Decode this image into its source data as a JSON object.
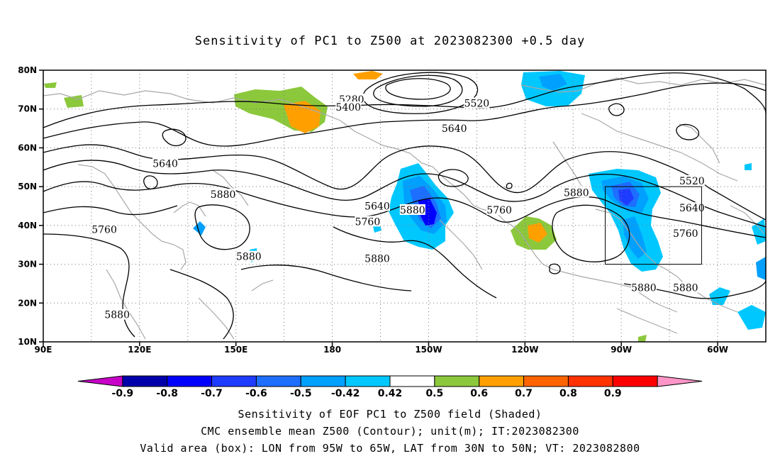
{
  "title": "Sensitivity of PC1 to Z500 at 2023082300 +0.5 day",
  "map": {
    "lat_labels": [
      {
        "text": "80N",
        "lat": 80
      },
      {
        "text": "70N",
        "lat": 70
      },
      {
        "text": "60N",
        "lat": 60
      },
      {
        "text": "50N",
        "lat": 50
      },
      {
        "text": "40N",
        "lat": 40
      },
      {
        "text": "30N",
        "lat": 30
      },
      {
        "text": "20N",
        "lat": 20
      },
      {
        "text": "10N",
        "lat": 10
      }
    ],
    "lon_labels": [
      {
        "text": "90E",
        "lon": 90
      },
      {
        "text": "120E",
        "lon": 120
      },
      {
        "text": "150E",
        "lon": 150
      },
      {
        "text": "180",
        "lon": 180
      },
      {
        "text": "150W",
        "lon": 210
      },
      {
        "text": "120W",
        "lon": 240
      },
      {
        "text": "90W",
        "lon": 270
      },
      {
        "text": "60W",
        "lon": 300
      }
    ],
    "lon_range": [
      90,
      315
    ],
    "lat_range": [
      10,
      80
    ],
    "grid": "dotted",
    "contour_labels": [
      {
        "text": "5280",
        "lon": 186,
        "lat": 72.5
      },
      {
        "text": "5400",
        "lon": 185,
        "lat": 70.5
      },
      {
        "text": "5520",
        "lon": 225,
        "lat": 71.5
      },
      {
        "text": "5640",
        "lon": 218,
        "lat": 65
      },
      {
        "text": "5640",
        "lon": 128,
        "lat": 56
      },
      {
        "text": "5880",
        "lon": 146,
        "lat": 48
      },
      {
        "text": "5760",
        "lon": 109,
        "lat": 39
      },
      {
        "text": "5640",
        "lon": 194,
        "lat": 45
      },
      {
        "text": "5760",
        "lon": 191,
        "lat": 41
      },
      {
        "text": "5880",
        "lon": 205,
        "lat": 44
      },
      {
        "text": "5760",
        "lon": 232,
        "lat": 44
      },
      {
        "text": "5880",
        "lon": 256,
        "lat": 48.5
      },
      {
        "text": "5520",
        "lon": 292,
        "lat": 51.5
      },
      {
        "text": "5640",
        "lon": 292,
        "lat": 44.5
      },
      {
        "text": "5760",
        "lon": 290,
        "lat": 38
      },
      {
        "text": "5880",
        "lon": 154,
        "lat": 32
      },
      {
        "text": "5880",
        "lon": 194,
        "lat": 31.5
      },
      {
        "text": "5880",
        "lon": 113,
        "lat": 17
      },
      {
        "text": "5880",
        "lon": 277,
        "lat": 24
      },
      {
        "text": "5880",
        "lon": 290,
        "lat": 24
      }
    ],
    "valid_box": {
      "lon_west": 265,
      "lon_east": 295,
      "lat_south": 30,
      "lat_north": 50
    }
  },
  "colorbar": {
    "labels": [
      "-0.9",
      "-0.8",
      "-0.7",
      "-0.6",
      "-0.5",
      "-0.42",
      "0.42",
      "0.5",
      "0.6",
      "0.7",
      "0.8",
      "0.9"
    ],
    "colors": [
      "#c800c8",
      "#0000aa",
      "#0000ff",
      "#1e3cff",
      "#1e6eff",
      "#00a0ff",
      "#00c8ff",
      "#ffffff",
      "#8cc83c",
      "#ffa000",
      "#ff6400",
      "#ff3200",
      "#ff0000",
      "#ff96c8"
    ]
  },
  "footer": {
    "line1": "Sensitivity of EOF PC1 to Z500 field (Shaded)",
    "line2": "CMC ensemble mean Z500 (Contour); unit(m); IT:2023082300",
    "line3": "Valid area (box): LON from 95W to 65W, LAT from 30N to 50N; VT: 2023082800"
  }
}
